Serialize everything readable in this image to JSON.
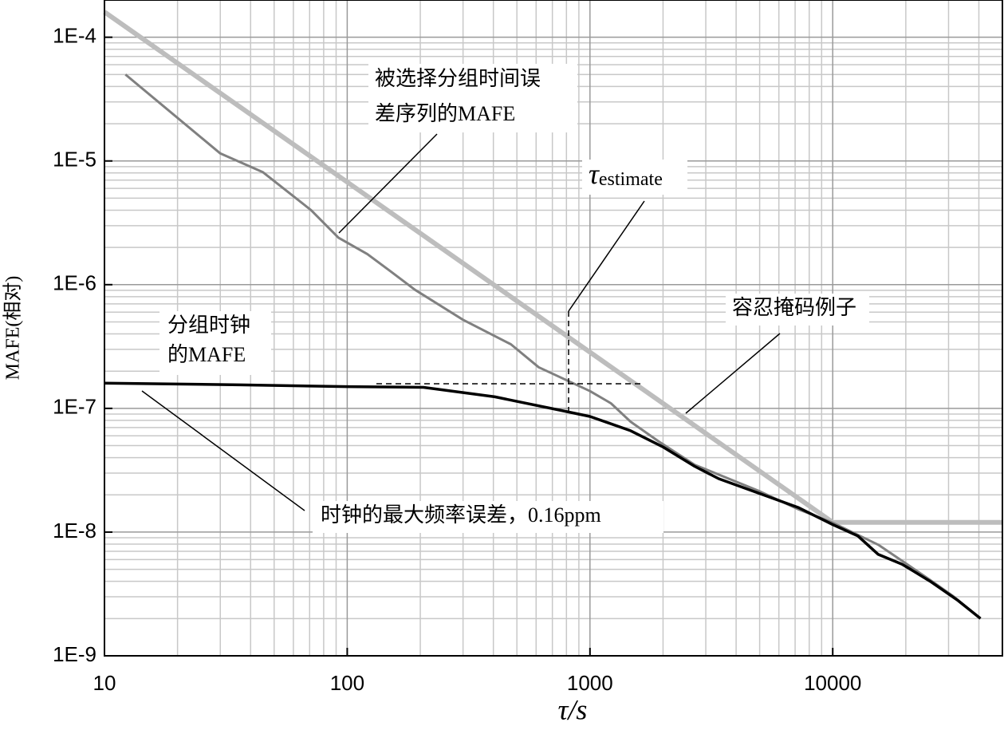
{
  "chart_data": {
    "type": "line",
    "x_label": "τ/s",
    "y_label": "MAFE(相对)",
    "xscale": "log",
    "yscale": "log",
    "grid": true,
    "minor_grid": true,
    "xlim": [
      10,
      50000
    ],
    "ylim": [
      1e-09,
      0.0002
    ],
    "xticks": [
      10,
      100,
      1000,
      10000
    ],
    "yticks": [
      {
        "value": 1e-09,
        "label": "1E-9"
      },
      {
        "value": 1e-08,
        "label": "1E-8"
      },
      {
        "value": 1e-07,
        "label": "1E-7"
      },
      {
        "value": 1e-06,
        "label": "1E-6"
      },
      {
        "value": 1e-05,
        "label": "1E-5"
      },
      {
        "value": 0.0001,
        "label": "1E-4"
      }
    ],
    "series": [
      {
        "color": "#bdbdbd",
        "x": [
          10,
          10000,
          50000
        ],
        "values": [
          0.00016,
          1.2e-08,
          1.2e-08
        ]
      },
      {
        "color": "#808080",
        "x": [
          12.2,
          30,
          45,
          71,
          92,
          121,
          151,
          190,
          300,
          472,
          615,
          1000,
          1220,
          1470,
          1920,
          2700,
          4940,
          7210,
          10000,
          15400,
          19300,
          25200,
          31600,
          40600
        ],
        "values": [
          5e-05,
          1.15e-05,
          8.1e-06,
          4e-06,
          2.4e-06,
          1.77e-06,
          1.28e-06,
          9.1e-07,
          5.2e-07,
          3.3e-07,
          2.15e-07,
          1.38e-07,
          1.1e-07,
          7.8e-08,
          5.4e-08,
          3.5e-08,
          2.16e-08,
          1.53e-08,
          1.19e-08,
          7.9e-09,
          5.85e-09,
          4.1e-09,
          3e-09,
          2e-09
        ]
      },
      {
        "color": "#000000",
        "x": [
          10,
          36,
          100,
          206,
          406,
          745,
          1000,
          1470,
          1990,
          2700,
          3390,
          7210,
          10000,
          12700,
          15400,
          19300,
          25200,
          32800,
          40600
        ],
        "values": [
          1.6e-07,
          1.55e-07,
          1.5e-07,
          1.48e-07,
          1.24e-07,
          9.7e-08,
          8.6e-08,
          6.6e-08,
          4.9e-08,
          3.4e-08,
          2.7e-08,
          1.58e-08,
          1.15e-08,
          9.3e-09,
          6.6e-09,
          5.5e-09,
          4e-09,
          2.8e-09,
          2e-09
        ]
      }
    ],
    "annotations": [
      {
        "lines": [
          "被选择分组时间误",
          "差序列的MAFE"
        ]
      },
      {
        "text": "τ",
        "sub": "estimate"
      },
      {
        "text": "容忍掩码例子"
      },
      {
        "lines": [
          "分组时钟",
          "的MAFE"
        ]
      },
      {
        "text": "时钟的最大频率误差，0.16ppm"
      }
    ]
  }
}
